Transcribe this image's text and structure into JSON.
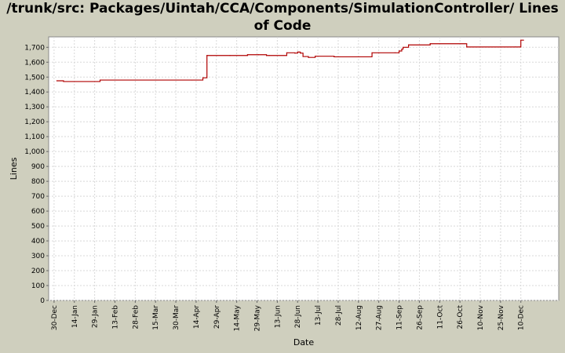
{
  "chart_data": {
    "type": "line",
    "title": "/trunk/src: Packages/Uintah/CCA/Components/SimulationController/ Lines of Code",
    "xlabel": "Date",
    "ylabel": "Lines",
    "ylim": [
      0,
      1770
    ],
    "yticks": [
      0,
      100,
      200,
      300,
      400,
      500,
      600,
      700,
      800,
      900,
      1000,
      1100,
      1200,
      1300,
      1400,
      1500,
      1600,
      1700
    ],
    "ytick_labels": [
      "0",
      "100",
      "200",
      "300",
      "400",
      "500",
      "600",
      "700",
      "800",
      "900",
      "1,000",
      "1,100",
      "1,200",
      "1,300",
      "1,400",
      "1,500",
      "1,600",
      "1,700"
    ],
    "xlim": [
      -4,
      373
    ],
    "xticks": [
      0,
      15,
      30,
      45,
      60,
      75,
      90,
      105,
      120,
      135,
      150,
      165,
      180,
      195,
      210,
      225,
      240,
      255,
      270,
      285,
      300,
      315,
      330,
      345
    ],
    "xtick_labels": [
      "30-Dec",
      "14-Jan",
      "29-Jan",
      "13-Feb",
      "28-Feb",
      "15-Mar",
      "30-Mar",
      "14-Apr",
      "29-Apr",
      "14-May",
      "29-May",
      "13-Jun",
      "28-Jun",
      "13-Jul",
      "28-Jul",
      "12-Aug",
      "27-Aug",
      "11-Sep",
      "26-Sep",
      "11-Oct",
      "26-Oct",
      "10-Nov",
      "25-Nov",
      "10-Dec"
    ],
    "grid": true,
    "line_color": "#b00000",
    "series": [
      {
        "x": [
          2,
          7,
          34,
          102,
          110,
          113,
          130,
          143,
          151,
          157,
          159,
          172,
          178,
          180,
          182,
          184,
          186,
          188,
          193,
          207,
          225,
          235,
          240,
          252,
          255,
          257,
          258,
          260,
          262,
          278,
          305,
          341,
          344,
          345,
          347
        ],
        "y": [
          1475,
          1470,
          1480,
          1480,
          1495,
          1645,
          1645,
          1650,
          1650,
          1645,
          1645,
          1663,
          1661,
          1668,
          1661,
          1638,
          1638,
          1632,
          1640,
          1636,
          1636,
          1663,
          1663,
          1663,
          1675,
          1688,
          1700,
          1700,
          1716,
          1724,
          1702,
          1702,
          1702,
          1748,
          1748
        ]
      }
    ]
  }
}
